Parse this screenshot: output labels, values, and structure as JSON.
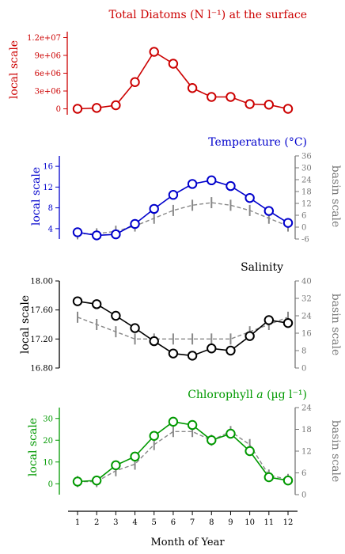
{
  "chart_data": [
    {
      "type": "line",
      "title": "Total Diatoms (N l⁻¹) at the surface",
      "ylabel": "local scale",
      "color": "#cc0000",
      "x": [
        1,
        2,
        3,
        4,
        5,
        6,
        7,
        8,
        9,
        10,
        11,
        12
      ],
      "ylim": [
        -1000000,
        13000000
      ],
      "yticks": [
        "0",
        "3e+06",
        "6e+06",
        "9e+06",
        "1.2e+07"
      ],
      "series": [
        {
          "values": [
            0,
            150000,
            600000,
            4500000,
            9600000,
            7600000,
            3500000,
            2000000,
            2000000,
            800000,
            700000,
            0
          ]
        }
      ]
    },
    {
      "type": "line",
      "title": "Temperature (°C)",
      "ylabel": "local scale",
      "y2label": "basin scale",
      "color": "#0000cc",
      "x": [
        1,
        2,
        3,
        4,
        5,
        6,
        7,
        8,
        9,
        10,
        11,
        12
      ],
      "ylim": [
        2,
        18
      ],
      "y2lim": [
        -6,
        36
      ],
      "yticks": [
        "4",
        "8",
        "12",
        "16"
      ],
      "y2ticks": [
        "-6",
        "0",
        "6",
        "12",
        "18",
        "24",
        "30",
        "36"
      ],
      "series": [
        {
          "values": [
            3.3,
            2.7,
            2.9,
            4.9,
            7.8,
            10.5,
            12.6,
            13.3,
            12.2,
            9.9,
            7.4,
            5.1
          ]
        },
        {
          "values": [
            3,
            3,
            3.5,
            4.5,
            6,
            7.5,
            8.5,
            9,
            8.5,
            7.5,
            6,
            4.5
          ]
        }
      ]
    },
    {
      "type": "line",
      "title": "Salinity",
      "ylabel": "local scale",
      "y2label": "basin scale",
      "color": "#000000",
      "x": [
        1,
        2,
        3,
        4,
        5,
        6,
        7,
        8,
        9,
        10,
        11,
        12
      ],
      "ylim": [
        16.8,
        18.0
      ],
      "y2lim": [
        0,
        40
      ],
      "yticks": [
        "16.80",
        "17.20",
        "17.60",
        "18.00"
      ],
      "y2ticks": [
        "0",
        "8",
        "16",
        "24",
        "32",
        "40"
      ],
      "series": [
        {
          "values": [
            17.72,
            17.68,
            17.52,
            17.35,
            17.17,
            17.0,
            16.97,
            17.07,
            17.04,
            17.24,
            17.46,
            17.42
          ]
        },
        {
          "values": [
            17.5,
            17.4,
            17.3,
            17.2,
            17.2,
            17.2,
            17.2,
            17.2,
            17.2,
            17.3,
            17.4,
            17.5
          ]
        }
      ]
    },
    {
      "type": "line",
      "title": "Chlorophyll a (µg l⁻¹)",
      "title_main": "Chlorophyll ",
      "title_em": "a",
      "title_end": " (µg l⁻¹)",
      "ylabel": "local scale",
      "y2label": "basin scale",
      "color": "#009900",
      "x": [
        1,
        2,
        3,
        4,
        5,
        6,
        7,
        8,
        9,
        10,
        11,
        12
      ],
      "ylim": [
        -5,
        35
      ],
      "y2lim": [
        0,
        24
      ],
      "yticks": [
        "0",
        "10",
        "20",
        "30"
      ],
      "y2ticks": [
        "0",
        "6",
        "12",
        "18",
        "24"
      ],
      "series": [
        {
          "values": [
            1,
            1.5,
            8.5,
            12.5,
            22,
            28.5,
            27,
            20,
            23,
            15,
            3,
            1.5
          ]
        },
        {
          "values": [
            1,
            1,
            6,
            9,
            18,
            24,
            24,
            20,
            24,
            18,
            4,
            2
          ]
        }
      ]
    }
  ],
  "xaxis": {
    "label": "Month of Year",
    "ticks": [
      "1",
      "2",
      "3",
      "4",
      "5",
      "6",
      "7",
      "8",
      "9",
      "10",
      "11",
      "12"
    ]
  }
}
